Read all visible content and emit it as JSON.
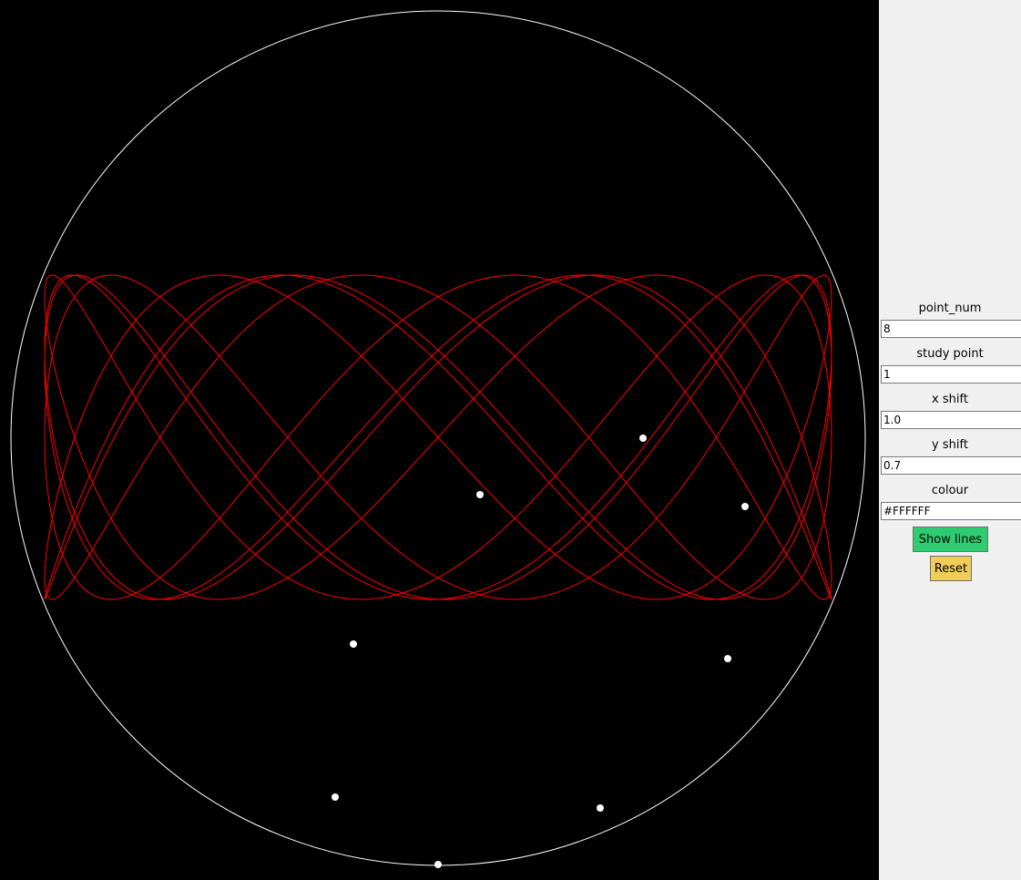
{
  "panel": {
    "fields": [
      {
        "label": "point_num",
        "value": "8"
      },
      {
        "label": "study point",
        "value": "1"
      },
      {
        "label": "x shift",
        "value": "1.0"
      },
      {
        "label": "y shift",
        "value": "0.7"
      },
      {
        "label": "colour",
        "value": "#FFFFFF"
      }
    ],
    "show_lines_label": "Show lines",
    "reset_label": "Reset"
  },
  "canvas": {
    "background_color": "#000000",
    "circle_color": "#FFFFFF",
    "curve_color": "#FF0000",
    "point_color": "#FFFFFF",
    "show_lines_color": "#2ECC71",
    "reset_color": "#F0CC5A"
  }
}
